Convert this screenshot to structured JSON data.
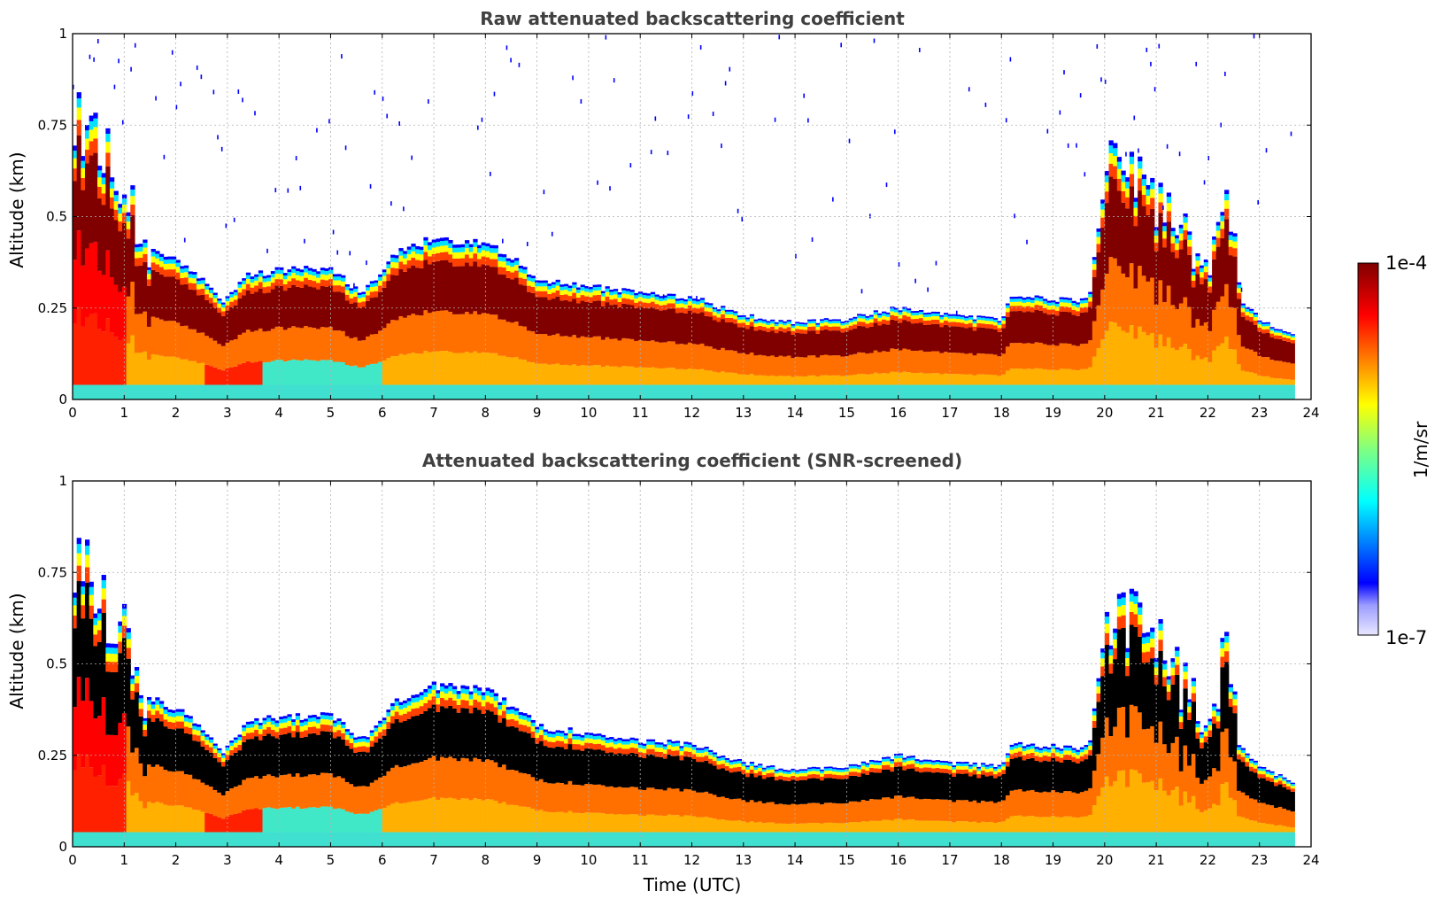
{
  "chart_data": [
    {
      "type": "heatmap",
      "title": "Raw attenuated backscattering coefficient",
      "xlabel": "",
      "ylabel": "Altitude (km)",
      "xlim": [
        0,
        24
      ],
      "ylim": [
        0,
        1
      ],
      "x_ticks": [
        "0",
        "1",
        "2",
        "3",
        "4",
        "5",
        "6",
        "7",
        "8",
        "9",
        "10",
        "11",
        "12",
        "13",
        "14",
        "15",
        "16",
        "17",
        "18",
        "19",
        "20",
        "21",
        "22",
        "23",
        "24"
      ],
      "y_ticks": [
        "0",
        "0.25",
        "0.5",
        "0.75",
        "1"
      ],
      "y_tick_values": [
        0,
        0.25,
        0.5,
        0.75,
        1
      ],
      "grid": true,
      "layer_top_km": [
        [
          0,
          0.85
        ],
        [
          0.5,
          0.65
        ],
        [
          1,
          0.6
        ],
        [
          1.3,
          0.42
        ],
        [
          2,
          0.38
        ],
        [
          2.5,
          0.33
        ],
        [
          2.9,
          0.26
        ],
        [
          3.4,
          0.34
        ],
        [
          3.8,
          0.35
        ],
        [
          5,
          0.36
        ],
        [
          5.6,
          0.29
        ],
        [
          6.3,
          0.4
        ],
        [
          7,
          0.44
        ],
        [
          8,
          0.43
        ],
        [
          8.6,
          0.38
        ],
        [
          9,
          0.33
        ],
        [
          10,
          0.31
        ],
        [
          11,
          0.29
        ],
        [
          12,
          0.28
        ],
        [
          13,
          0.23
        ],
        [
          14,
          0.21
        ],
        [
          15,
          0.22
        ],
        [
          16,
          0.25
        ],
        [
          17,
          0.23
        ],
        [
          18,
          0.22
        ],
        [
          18.2,
          0.28
        ],
        [
          19.7,
          0.27
        ],
        [
          20,
          0.6
        ],
        [
          20.5,
          0.65
        ],
        [
          21,
          0.55
        ],
        [
          21.5,
          0.45
        ],
        [
          22,
          0.32
        ],
        [
          22.4,
          0.58
        ],
        [
          22.6,
          0.28
        ],
        [
          23,
          0.22
        ],
        [
          23.6,
          0.18
        ]
      ],
      "series_note": "Attenuated backscatter field 0–23.6 UTC, 0–1 km; saturated core below the layer top",
      "colorbar": {
        "min_label": "1e-7",
        "max_label": "1e-4",
        "label": "1/m/sr",
        "scale": "log"
      }
    },
    {
      "type": "heatmap",
      "title": "Attenuated backscattering coefficient (SNR-screened)",
      "xlabel": "Time (UTC)",
      "ylabel": "Altitude (km)",
      "xlim": [
        0,
        24
      ],
      "ylim": [
        0,
        1
      ],
      "x_ticks": [
        "0",
        "1",
        "2",
        "3",
        "4",
        "5",
        "6",
        "7",
        "8",
        "9",
        "10",
        "11",
        "12",
        "13",
        "14",
        "15",
        "16",
        "17",
        "18",
        "19",
        "20",
        "21",
        "22",
        "23",
        "24"
      ],
      "y_ticks": [
        "0",
        "0.25",
        "0.5",
        "0.75",
        "1"
      ],
      "y_tick_values": [
        0,
        0.25,
        0.5,
        0.75,
        1
      ],
      "grid": true,
      "layer_top_km": [
        [
          0,
          0.85
        ],
        [
          0.5,
          0.65
        ],
        [
          1,
          0.6
        ],
        [
          1.3,
          0.42
        ],
        [
          2,
          0.38
        ],
        [
          2.5,
          0.33
        ],
        [
          2.9,
          0.26
        ],
        [
          3.4,
          0.34
        ],
        [
          3.8,
          0.35
        ],
        [
          5,
          0.36
        ],
        [
          5.6,
          0.29
        ],
        [
          6.3,
          0.4
        ],
        [
          7,
          0.44
        ],
        [
          8,
          0.43
        ],
        [
          8.6,
          0.38
        ],
        [
          9,
          0.33
        ],
        [
          10,
          0.31
        ],
        [
          11,
          0.29
        ],
        [
          12,
          0.28
        ],
        [
          13,
          0.23
        ],
        [
          14,
          0.21
        ],
        [
          15,
          0.22
        ],
        [
          16,
          0.25
        ],
        [
          17,
          0.23
        ],
        [
          18,
          0.22
        ],
        [
          18.2,
          0.28
        ],
        [
          19.7,
          0.27
        ],
        [
          20,
          0.6
        ],
        [
          20.5,
          0.65
        ],
        [
          21,
          0.55
        ],
        [
          21.5,
          0.45
        ],
        [
          22,
          0.32
        ],
        [
          22.4,
          0.58
        ],
        [
          22.6,
          0.28
        ],
        [
          23,
          0.22
        ],
        [
          23.6,
          0.18
        ]
      ],
      "series_note": "Same field after SNR screening; noise removed above the layer, saturated core rendered black",
      "colorbar": {
        "min_label": "1e-7",
        "max_label": "1e-4",
        "label": "1/m/sr",
        "scale": "log"
      }
    }
  ],
  "colorbar": {
    "max_label": "1e-4",
    "min_label": "1e-7",
    "label": "1/m/sr",
    "colors": [
      "#e8e8ff",
      "#0000ff",
      "#00a0ff",
      "#00ffff",
      "#80ff80",
      "#ffff00",
      "#ff8000",
      "#ff0000",
      "#800000"
    ]
  }
}
